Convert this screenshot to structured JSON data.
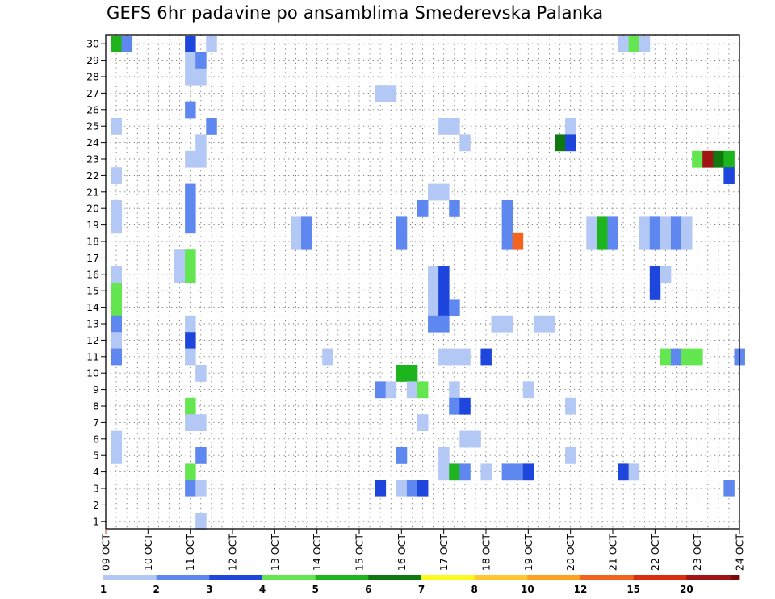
{
  "chart_data": {
    "type": "heatmap",
    "title": "GEFS 6hr padavine po ansamblima Smederevska Palanka",
    "xlabel": "",
    "ylabel": "",
    "ylim": [
      0.5,
      30.5
    ],
    "grid": true,
    "x_tick_labels": [
      "09 OCT",
      "10 OCT",
      "11 OCT",
      "12 OCT",
      "13 OCT",
      "14 OCT",
      "15 OCT",
      "16 OCT",
      "17 OCT",
      "18 OCT",
      "19 OCT",
      "20 OCT",
      "21 OCT",
      "22 OCT",
      "23 OCT",
      "24 OCT"
    ],
    "y_tick_labels": [
      "1",
      "2",
      "3",
      "4",
      "5",
      "6",
      "7",
      "8",
      "9",
      "10",
      "11",
      "12",
      "13",
      "14",
      "15",
      "16",
      "17",
      "18",
      "19",
      "20",
      "21",
      "22",
      "23",
      "24",
      "25",
      "26",
      "27",
      "28",
      "29",
      "30"
    ],
    "time_steps_per_day": 4,
    "legend": {
      "colors": [
        "#b4c8f5",
        "#5f87f0",
        "#1e46dc",
        "#64e650",
        "#1eb41e",
        "#0f780f",
        "#fafa1e",
        "#ffc832",
        "#ffa01e",
        "#f5641e",
        "#dc2d14",
        "#a01414",
        "#780a0a"
      ],
      "labels": [
        "1",
        "2",
        "3",
        "4",
        "5",
        "6",
        "7",
        "8",
        "10",
        "12",
        "15",
        "20"
      ]
    },
    "cells": [
      {
        "m": 30,
        "t": 1,
        "c": 5
      },
      {
        "m": 30,
        "t": 2,
        "c": 2
      },
      {
        "m": 30,
        "t": 8,
        "c": 3
      },
      {
        "m": 30,
        "t": 10,
        "c": 1
      },
      {
        "m": 30,
        "t": 49,
        "c": 1
      },
      {
        "m": 30,
        "t": 50,
        "c": 4
      },
      {
        "m": 30,
        "t": 51,
        "c": 1
      },
      {
        "m": 29,
        "t": 8,
        "c": 1
      },
      {
        "m": 29,
        "t": 9,
        "c": 2
      },
      {
        "m": 28,
        "t": 8,
        "c": 1
      },
      {
        "m": 28,
        "t": 9,
        "c": 1
      },
      {
        "m": 27,
        "t": 26,
        "c": 1
      },
      {
        "m": 27,
        "t": 27,
        "c": 1
      },
      {
        "m": 26,
        "t": 8,
        "c": 2
      },
      {
        "m": 25,
        "t": 1,
        "c": 1
      },
      {
        "m": 25,
        "t": 10,
        "c": 2
      },
      {
        "m": 25,
        "t": 32,
        "c": 1
      },
      {
        "m": 25,
        "t": 33,
        "c": 1
      },
      {
        "m": 25,
        "t": 44,
        "c": 1
      },
      {
        "m": 24,
        "t": 9,
        "c": 1
      },
      {
        "m": 24,
        "t": 34,
        "c": 1
      },
      {
        "m": 24,
        "t": 43,
        "c": 6
      },
      {
        "m": 24,
        "t": 44,
        "c": 3
      },
      {
        "m": 23,
        "t": 8,
        "c": 1
      },
      {
        "m": 23,
        "t": 9,
        "c": 1
      },
      {
        "m": 23,
        "t": 56,
        "c": 4
      },
      {
        "m": 23,
        "t": 57,
        "c": 12
      },
      {
        "m": 23,
        "t": 58,
        "c": 6
      },
      {
        "m": 23,
        "t": 59,
        "c": 5
      },
      {
        "m": 22,
        "t": 1,
        "c": 1
      },
      {
        "m": 22,
        "t": 59,
        "c": 3
      },
      {
        "m": 21,
        "t": 8,
        "c": 2
      },
      {
        "m": 21,
        "t": 31,
        "c": 1
      },
      {
        "m": 21,
        "t": 32,
        "c": 1
      },
      {
        "m": 20,
        "t": 1,
        "c": 1
      },
      {
        "m": 20,
        "t": 8,
        "c": 2
      },
      {
        "m": 20,
        "t": 30,
        "c": 2
      },
      {
        "m": 20,
        "t": 33,
        "c": 2
      },
      {
        "m": 20,
        "t": 38,
        "c": 2
      },
      {
        "m": 19,
        "t": 1,
        "c": 1
      },
      {
        "m": 19,
        "t": 8,
        "c": 2
      },
      {
        "m": 19,
        "t": 38,
        "c": 2
      },
      {
        "m": 19,
        "t": 18,
        "c": 1
      },
      {
        "m": 18,
        "t": 18,
        "c": 1
      },
      {
        "m": 19,
        "t": 19,
        "c": 2
      },
      {
        "m": 18,
        "t": 19,
        "c": 2
      },
      {
        "m": 19,
        "t": 28,
        "c": 2
      },
      {
        "m": 18,
        "t": 28,
        "c": 2
      },
      {
        "m": 18,
        "t": 38,
        "c": 2
      },
      {
        "m": 18,
        "t": 39,
        "c": 10
      },
      {
        "m": 19,
        "t": 46,
        "c": 1
      },
      {
        "m": 18,
        "t": 46,
        "c": 1
      },
      {
        "m": 19,
        "t": 47,
        "c": 5
      },
      {
        "m": 18,
        "t": 47,
        "c": 5
      },
      {
        "m": 19,
        "t": 48,
        "c": 2
      },
      {
        "m": 18,
        "t": 48,
        "c": 2
      },
      {
        "m": 19,
        "t": 51,
        "c": 1
      },
      {
        "m": 18,
        "t": 51,
        "c": 1
      },
      {
        "m": 19,
        "t": 52,
        "c": 2
      },
      {
        "m": 18,
        "t": 52,
        "c": 2
      },
      {
        "m": 19,
        "t": 53,
        "c": 1
      },
      {
        "m": 18,
        "t": 53,
        "c": 1
      },
      {
        "m": 19,
        "t": 54,
        "c": 2
      },
      {
        "m": 18,
        "t": 54,
        "c": 2
      },
      {
        "m": 19,
        "t": 55,
        "c": 1
      },
      {
        "m": 18,
        "t": 55,
        "c": 1
      },
      {
        "m": 17,
        "t": 7,
        "c": 1
      },
      {
        "m": 16,
        "t": 7,
        "c": 1
      },
      {
        "m": 17,
        "t": 8,
        "c": 4
      },
      {
        "m": 16,
        "t": 8,
        "c": 4
      },
      {
        "m": 16,
        "t": 1,
        "c": 1
      },
      {
        "m": 16,
        "t": 31,
        "c": 1
      },
      {
        "m": 16,
        "t": 32,
        "c": 3
      },
      {
        "m": 16,
        "t": 52,
        "c": 3
      },
      {
        "m": 16,
        "t": 53,
        "c": 1
      },
      {
        "m": 15,
        "t": 1,
        "c": 4
      },
      {
        "m": 15,
        "t": 31,
        "c": 1
      },
      {
        "m": 15,
        "t": 32,
        "c": 3
      },
      {
        "m": 15,
        "t": 52,
        "c": 3
      },
      {
        "m": 14,
        "t": 1,
        "c": 4
      },
      {
        "m": 14,
        "t": 31,
        "c": 1
      },
      {
        "m": 14,
        "t": 32,
        "c": 3
      },
      {
        "m": 14,
        "t": 33,
        "c": 2
      },
      {
        "m": 13,
        "t": 1,
        "c": 2
      },
      {
        "m": 13,
        "t": 8,
        "c": 1
      },
      {
        "m": 13,
        "t": 31,
        "c": 2
      },
      {
        "m": 13,
        "t": 32,
        "c": 2
      },
      {
        "m": 13,
        "t": 37,
        "c": 1
      },
      {
        "m": 13,
        "t": 38,
        "c": 1
      },
      {
        "m": 13,
        "t": 41,
        "c": 1
      },
      {
        "m": 13,
        "t": 42,
        "c": 1
      },
      {
        "m": 12,
        "t": 1,
        "c": 1
      },
      {
        "m": 12,
        "t": 8,
        "c": 3
      },
      {
        "m": 11,
        "t": 1,
        "c": 2
      },
      {
        "m": 11,
        "t": 8,
        "c": 1
      },
      {
        "m": 11,
        "t": 21,
        "c": 1
      },
      {
        "m": 11,
        "t": 32,
        "c": 1
      },
      {
        "m": 11,
        "t": 33,
        "c": 1
      },
      {
        "m": 11,
        "t": 34,
        "c": 1
      },
      {
        "m": 11,
        "t": 36,
        "c": 3
      },
      {
        "m": 11,
        "t": 53,
        "c": 4
      },
      {
        "m": 11,
        "t": 54,
        "c": 2
      },
      {
        "m": 11,
        "t": 55,
        "c": 4
      },
      {
        "m": 11,
        "t": 56,
        "c": 4
      },
      {
        "m": 11,
        "t": 60,
        "c": 2
      },
      {
        "m": 10,
        "t": 9,
        "c": 1
      },
      {
        "m": 10,
        "t": 28,
        "c": 5
      },
      {
        "m": 10,
        "t": 29,
        "c": 5
      },
      {
        "m": 9,
        "t": 26,
        "c": 2
      },
      {
        "m": 9,
        "t": 27,
        "c": 1
      },
      {
        "m": 9,
        "t": 29,
        "c": 1
      },
      {
        "m": 9,
        "t": 30,
        "c": 4
      },
      {
        "m": 9,
        "t": 33,
        "c": 1
      },
      {
        "m": 9,
        "t": 40,
        "c": 1
      },
      {
        "m": 8,
        "t": 8,
        "c": 4
      },
      {
        "m": 8,
        "t": 33,
        "c": 2
      },
      {
        "m": 8,
        "t": 34,
        "c": 3
      },
      {
        "m": 8,
        "t": 44,
        "c": 1
      },
      {
        "m": 7,
        "t": 8,
        "c": 1
      },
      {
        "m": 7,
        "t": 9,
        "c": 1
      },
      {
        "m": 7,
        "t": 30,
        "c": 1
      },
      {
        "m": 6,
        "t": 1,
        "c": 1
      },
      {
        "m": 6,
        "t": 34,
        "c": 1
      },
      {
        "m": 6,
        "t": 35,
        "c": 1
      },
      {
        "m": 5,
        "t": 1,
        "c": 1
      },
      {
        "m": 5,
        "t": 9,
        "c": 2
      },
      {
        "m": 5,
        "t": 28,
        "c": 2
      },
      {
        "m": 5,
        "t": 32,
        "c": 1
      },
      {
        "m": 5,
        "t": 44,
        "c": 1
      },
      {
        "m": 4,
        "t": 8,
        "c": 4
      },
      {
        "m": 4,
        "t": 32,
        "c": 1
      },
      {
        "m": 4,
        "t": 33,
        "c": 5
      },
      {
        "m": 4,
        "t": 34,
        "c": 2
      },
      {
        "m": 4,
        "t": 36,
        "c": 1
      },
      {
        "m": 4,
        "t": 38,
        "c": 2
      },
      {
        "m": 4,
        "t": 39,
        "c": 2
      },
      {
        "m": 4,
        "t": 40,
        "c": 3
      },
      {
        "m": 4,
        "t": 49,
        "c": 3
      },
      {
        "m": 4,
        "t": 50,
        "c": 1
      },
      {
        "m": 3,
        "t": 8,
        "c": 2
      },
      {
        "m": 3,
        "t": 9,
        "c": 1
      },
      {
        "m": 3,
        "t": 26,
        "c": 3
      },
      {
        "m": 3,
        "t": 28,
        "c": 1
      },
      {
        "m": 3,
        "t": 29,
        "c": 2
      },
      {
        "m": 3,
        "t": 30,
        "c": 3
      },
      {
        "m": 3,
        "t": 59,
        "c": 2
      },
      {
        "m": 1,
        "t": 9,
        "c": 1
      }
    ]
  }
}
